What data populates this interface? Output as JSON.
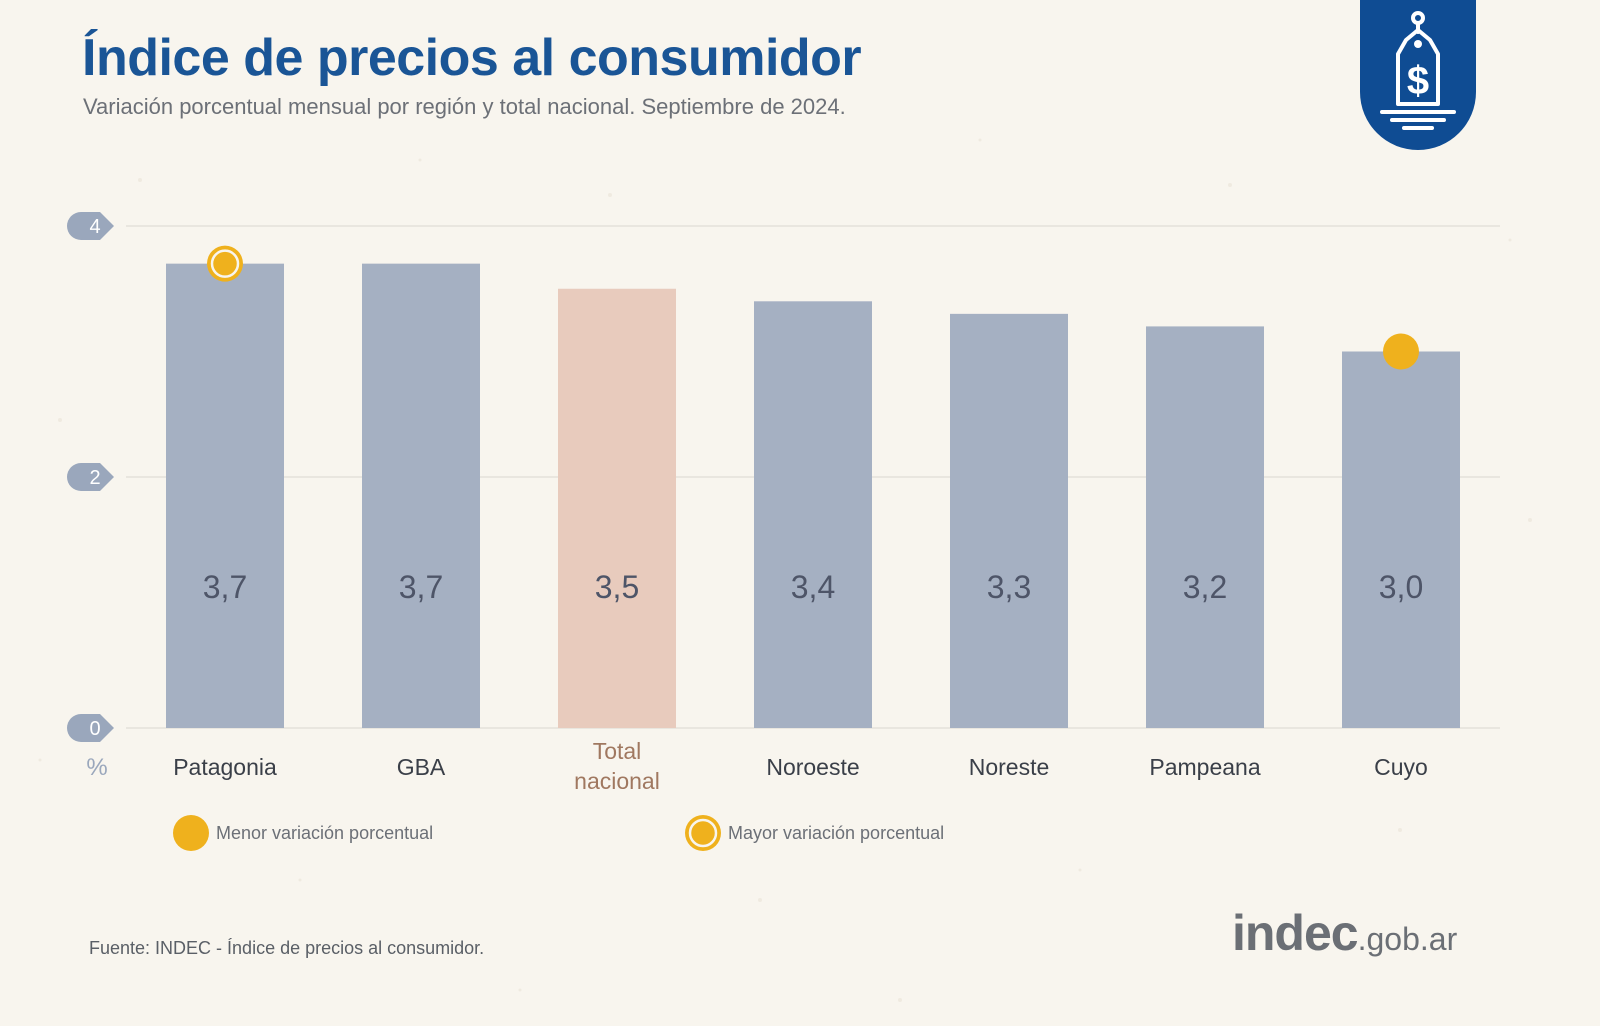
{
  "header": {
    "title": "Índice de precios al consumidor",
    "subtitle": "Variación porcentual mensual por región y total nacional. Septiembre de 2024."
  },
  "badge": {
    "icon": "price-tag-dollar-icon",
    "color": "#0f4c93"
  },
  "chart_data": {
    "type": "bar",
    "categories": [
      "Patagonia",
      "GBA",
      "Total nacional",
      "Noroeste",
      "Noreste",
      "Pampeana",
      "Cuyo"
    ],
    "values": [
      3.7,
      3.7,
      3.5,
      3.4,
      3.3,
      3.2,
      3.0
    ],
    "value_labels": [
      "3,7",
      "3,7",
      "3,5",
      "3,4",
      "3,3",
      "3,2",
      "3,0"
    ],
    "ylabel": "%",
    "ylim": [
      0,
      4
    ],
    "yticks": [
      "0",
      "2",
      "4"
    ],
    "grid": true,
    "highlight_category": "Total nacional",
    "markers": [
      {
        "category": "Patagonia",
        "kind": "ring"
      },
      {
        "category": "Cuyo",
        "kind": "filled"
      }
    ],
    "colors": {
      "bar": "#a5b0c2",
      "bar_highlight": "#e8cbbd",
      "value_label": "#4e5568",
      "category_label": "#3a3f48",
      "category_label_highlight": "#a07860",
      "marker": "#efb11d",
      "tick_badge": "#9aa7bc",
      "grid": "#e0ddd6"
    }
  },
  "legend": {
    "min_label": "Menor variación porcentual",
    "max_label": "Mayor variación porcentual"
  },
  "footer": {
    "source": "Fuente: INDEC - Índice de precios al consumidor.",
    "brand_main": "indec",
    "brand_domain": ".gob.ar"
  }
}
